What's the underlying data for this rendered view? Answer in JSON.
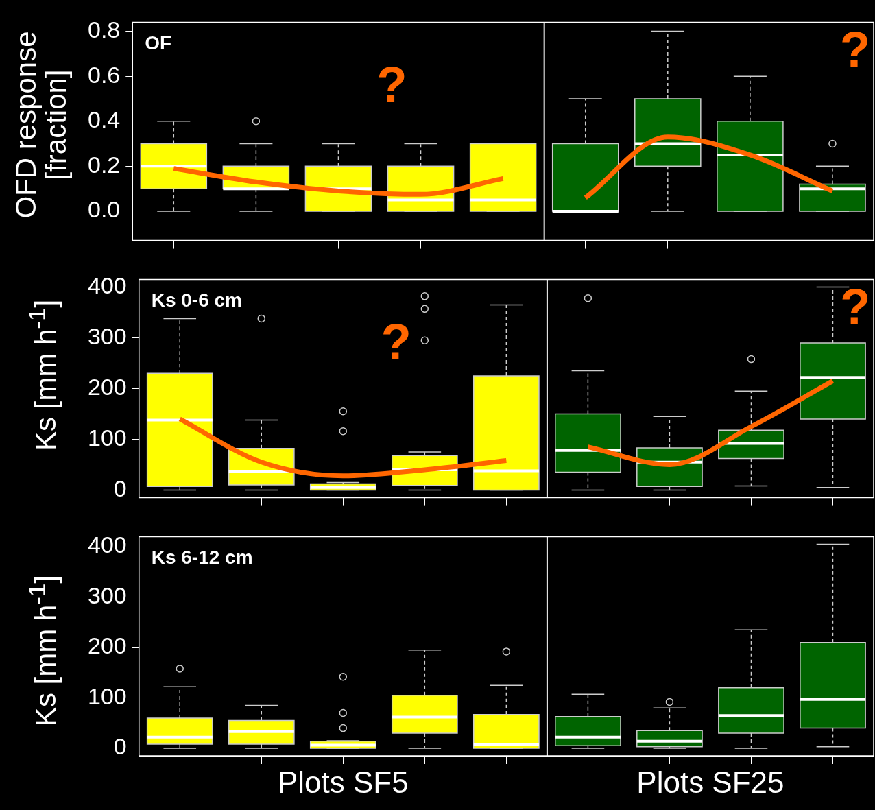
{
  "chart_data": [
    {
      "type": "box",
      "title": "OF",
      "ylabel": "OFD response\n[fraction]",
      "categories": [
        null,
        null,
        null,
        null,
        null,
        null,
        null,
        null,
        null
      ],
      "ylim": [
        -0.13,
        0.84
      ],
      "yticks": [
        {
          "value": 0,
          "label": "0.0"
        },
        {
          "value": 0.2,
          "label": "0.2"
        },
        {
          "value": 0.4,
          "label": "0.4"
        },
        {
          "value": 0.6,
          "label": "0.6"
        },
        {
          "value": 0.8,
          "label": "0.8"
        }
      ],
      "tick_labels": "y",
      "annotations": [
        "?",
        "?"
      ],
      "series": [
        {
          "color": "#ffff00",
          "boxes": [
            {
              "low": 0,
              "q1": 0.1,
              "median": 0.2,
              "q3": 0.3,
              "high": 0.4
            },
            {
              "low": 0,
              "q1": 0.1,
              "median": 0.1,
              "q3": 0.2,
              "high": 0.3,
              "outliers": [
                0.4
              ]
            },
            {
              "low": 0,
              "q1": 0,
              "median": 0.1,
              "q3": 0.2,
              "high": 0.3
            },
            {
              "low": 0,
              "q1": 0,
              "median": 0.05,
              "q3": 0.2,
              "high": 0.3
            },
            {
              "low": 0,
              "q1": 0,
              "median": 0.05,
              "q3": 0.3,
              "high": 0.3
            },
            null,
            null,
            null,
            null
          ]
        },
        {
          "color": "#006400",
          "boxes": [
            null,
            null,
            null,
            null,
            null,
            {
              "low": 0,
              "q1": 0,
              "median": 0,
              "q3": 0.3,
              "high": 0.5
            },
            {
              "low": 0,
              "q1": 0.2,
              "median": 0.3,
              "q3": 0.5,
              "high": 0.8
            },
            {
              "low": 0,
              "q1": 0,
              "median": 0.25,
              "q3": 0.4,
              "high": 0.6
            },
            {
              "low": 0,
              "q1": 0,
              "median": 0.1,
              "q3": 0.12,
              "high": 0.2,
              "outliers": [
                0.3
              ]
            }
          ]
        },
        {
          "type": "line",
          "color": "#ff6600",
          "values": [
            0.19,
            0.13,
            0.09,
            0.075,
            0.145,
            null,
            null,
            null,
            null
          ]
        },
        {
          "type": "line",
          "color": "#ff6600",
          "values": [
            null,
            null,
            null,
            null,
            null,
            0.06,
            0.33,
            0.25,
            0.09
          ]
        }
      ]
    },
    {
      "type": "box",
      "title": "Ks 0-6 cm",
      "ylabel": "Ks [mm h$^{-1}$]",
      "categories": [
        null,
        null,
        null,
        null,
        null,
        null,
        null,
        null,
        null
      ],
      "ylim": [
        -15,
        415
      ],
      "yticks": [
        0,
        100,
        200,
        300,
        400
      ],
      "tick_labels": "y",
      "annotations": [
        "?",
        "?"
      ],
      "series": [
        {
          "color": "#ffff00",
          "boxes": [
            {
              "low": 0,
              "q1": 7,
              "median": 138,
              "q3": 230,
              "high": 338
            },
            {
              "low": 0,
              "q1": 10,
              "median": 36,
              "q3": 82,
              "high": 138,
              "outliers": [
                338
              ]
            },
            {
              "low": 0,
              "q1": 0,
              "median": 5,
              "q3": 12,
              "high": 15,
              "outliers": [
                155,
                116
              ]
            },
            {
              "low": 0,
              "q1": 9,
              "median": 40,
              "q3": 68,
              "high": 75,
              "outliers": [
                382,
                357,
                295
              ]
            },
            {
              "low": 0,
              "q1": 0,
              "median": 38,
              "q3": 225,
              "high": 365
            },
            null,
            null,
            null,
            null
          ]
        },
        {
          "color": "#006400",
          "boxes": [
            null,
            null,
            null,
            null,
            null,
            {
              "low": 0,
              "q1": 35,
              "median": 78,
              "q3": 150,
              "high": 235,
              "outliers": [
                378
              ]
            },
            {
              "low": 0,
              "q1": 7,
              "median": 55,
              "q3": 83,
              "high": 145
            },
            {
              "low": 8,
              "q1": 62,
              "median": 92,
              "q3": 118,
              "high": 195,
              "outliers": [
                258
              ]
            },
            {
              "low": 5,
              "q1": 140,
              "median": 222,
              "q3": 290,
              "high": 400
            }
          ]
        },
        {
          "type": "line",
          "color": "#ff6600",
          "values": [
            140,
            55,
            28,
            40,
            58,
            null,
            null,
            null,
            null
          ]
        },
        {
          "type": "line",
          "color": "#ff6600",
          "values": [
            null,
            null,
            null,
            null,
            null,
            85,
            50,
            125,
            215
          ]
        }
      ]
    },
    {
      "type": "box",
      "title": "Ks 6-12 cm",
      "ylabel": "Ks [mm h$^{-1}$]",
      "categories": [
        null,
        null,
        null,
        null,
        null,
        null,
        null,
        null,
        null
      ],
      "ylim": [
        -15,
        420
      ],
      "yticks": [
        0,
        100,
        200,
        300,
        400
      ],
      "tick_labels": "y",
      "annotations": [
        "Plots SF5",
        "Plots SF25"
      ],
      "series": [
        {
          "color": "#ffff00",
          "boxes": [
            {
              "low": 0,
              "q1": 8,
              "median": 22,
              "q3": 60,
              "high": 122,
              "outliers": [
                158
              ]
            },
            {
              "low": 0,
              "q1": 8,
              "median": 33,
              "q3": 55,
              "high": 85
            },
            {
              "low": 0,
              "q1": 0,
              "median": 6,
              "q3": 14,
              "high": 15,
              "outliers": [
                142,
                70,
                40
              ]
            },
            {
              "low": 0,
              "q1": 30,
              "median": 62,
              "q3": 105,
              "high": 195
            },
            {
              "low": 0,
              "q1": 0,
              "median": 8,
              "q3": 67,
              "high": 125,
              "outliers": [
                192
              ]
            },
            null,
            null,
            null,
            null
          ]
        },
        {
          "color": "#006400",
          "boxes": [
            null,
            null,
            null,
            null,
            null,
            {
              "low": 0,
              "q1": 5,
              "median": 22,
              "q3": 63,
              "high": 107
            },
            {
              "low": 0,
              "q1": 3,
              "median": 14,
              "q3": 35,
              "high": 80,
              "outliers": [
                92
              ]
            },
            {
              "low": 0,
              "q1": 30,
              "median": 65,
              "q3": 120,
              "high": 235
            },
            {
              "low": 3,
              "q1": 40,
              "median": 97,
              "q3": 210,
              "high": 405
            }
          ]
        }
      ]
    }
  ]
}
